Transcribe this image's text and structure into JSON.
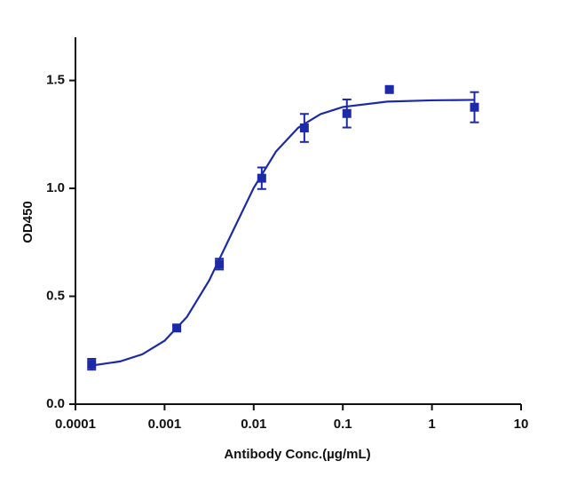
{
  "chart_data": {
    "type": "scatter",
    "x_label": "Antibody Conc.(µg/mL)",
    "y_label": "OD450",
    "x_scale": "log",
    "color": "#1c2aa8",
    "x": [
      0.000152,
      0.00137,
      0.00412,
      0.0123,
      0.037,
      0.111,
      0.333,
      3
    ],
    "values": [
      0.185,
      0.353,
      0.649,
      1.047,
      1.28,
      1.347,
      1.458,
      1.376
    ],
    "errors": [
      0.025,
      0.01,
      0.025,
      0.05,
      0.065,
      0.065,
      0.01,
      0.07
    ],
    "fit_x": [
      0.000152,
      0.000316,
      0.000562,
      0.001,
      0.00178,
      0.00316,
      0.00562,
      0.01,
      0.0178,
      0.0316,
      0.0562,
      0.1,
      0.316,
      1,
      3
    ],
    "fit_values": [
      0.179,
      0.198,
      0.231,
      0.294,
      0.404,
      0.573,
      0.788,
      1.002,
      1.171,
      1.281,
      1.344,
      1.377,
      1.402,
      1.408,
      1.41
    ],
    "xlim": [
      0.0001,
      10
    ],
    "xticks": [
      0.0001,
      0.001,
      0.01,
      0.1,
      1,
      10
    ],
    "ylim": [
      0,
      1.7
    ],
    "yticks": [
      {
        "value": 0,
        "label": "0.0"
      },
      {
        "value": 0.5,
        "label": "0.5"
      },
      {
        "value": 1,
        "label": "1.0"
      },
      {
        "value": 1.5,
        "label": "1.5"
      }
    ]
  }
}
